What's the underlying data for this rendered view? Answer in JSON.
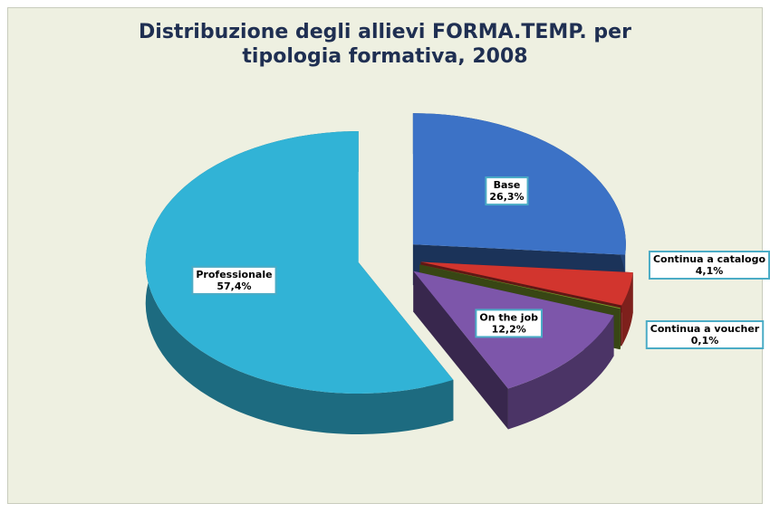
{
  "chart_data": {
    "type": "pie",
    "title": "Distribuzione degli allievi FORMA.TEMP. per tipologia formativa, 2008",
    "categories": [
      "Base",
      "Continua a catalogo",
      "Continua a voucher",
      "On the job",
      "Professionale"
    ],
    "values": [
      26.3,
      4.1,
      0.1,
      12.2,
      57.4
    ],
    "value_labels": [
      "26,3%",
      "4,1%",
      "0,1%",
      "12,2%",
      "57,4%"
    ],
    "colors": [
      "#3c72c6",
      "#d2352e",
      "#7d9b2c",
      "#7d56aa",
      "#31b3d6"
    ]
  }
}
